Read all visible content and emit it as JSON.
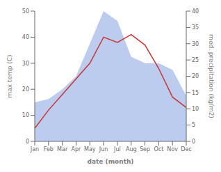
{
  "chart_data": {
    "type": "line",
    "xlabel": "date (month)",
    "ylabel": "max temp (C)",
    "y2label": "med. precipitation (kg/m2)",
    "categories": [
      "Jan",
      "Feb",
      "Mar",
      "Apr",
      "May",
      "Jun",
      "Jul",
      "Aug",
      "Sep",
      "Oct",
      "Nov",
      "Dec"
    ],
    "series": [
      {
        "type": "line",
        "color": "#cc3333",
        "values": [
          5,
          12,
          18,
          24,
          30,
          40,
          38,
          41,
          37,
          28,
          17,
          13
        ]
      },
      {
        "type": "area",
        "axis": "y2",
        "color": "#bbccee",
        "values": [
          12,
          13,
          16,
          20,
          30,
          40,
          37,
          26,
          24,
          24,
          22,
          14
        ]
      }
    ],
    "ylim": [
      0,
      50
    ],
    "yticks": [
      0,
      10,
      20,
      30,
      40,
      50
    ],
    "y2lim": [
      0,
      40
    ],
    "y2ticks": [
      0,
      5,
      10,
      15,
      20,
      25,
      30,
      35,
      40
    ],
    "grid": false
  }
}
